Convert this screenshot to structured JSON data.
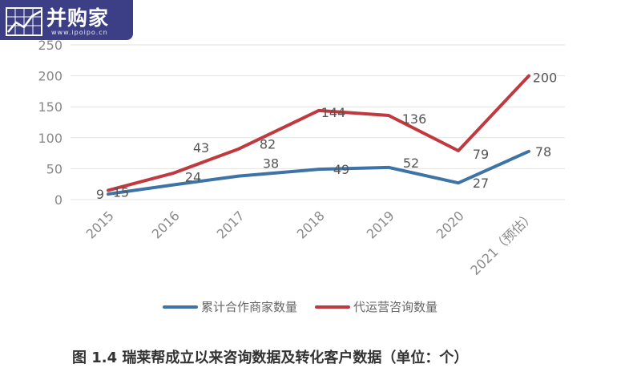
{
  "logo": {
    "text": "并购家",
    "url": "www.ipoipo.cn"
  },
  "caption": "图 1.4 瑞莱帮成立以来咨询数据及转化客户数据（单位：个）",
  "chart_data": {
    "type": "line",
    "categories": [
      "2015",
      "2016",
      "2017",
      "2018",
      "2019",
      "2020",
      "2021（预估）"
    ],
    "series": [
      {
        "name": "累计合作商家数量",
        "values": [
          9,
          24,
          38,
          49,
          52,
          27,
          78
        ],
        "color": "#3d73a6"
      },
      {
        "name": "代运营咨询数量",
        "values": [
          15,
          43,
          82,
          144,
          136,
          79,
          200
        ],
        "color": "#c0393f"
      }
    ],
    "y_ticks": [
      0,
      50,
      100,
      150,
      200,
      250
    ],
    "ylim": [
      0,
      250
    ],
    "grid": "horizontal",
    "legend_position": "bottom",
    "data_labels": true
  }
}
